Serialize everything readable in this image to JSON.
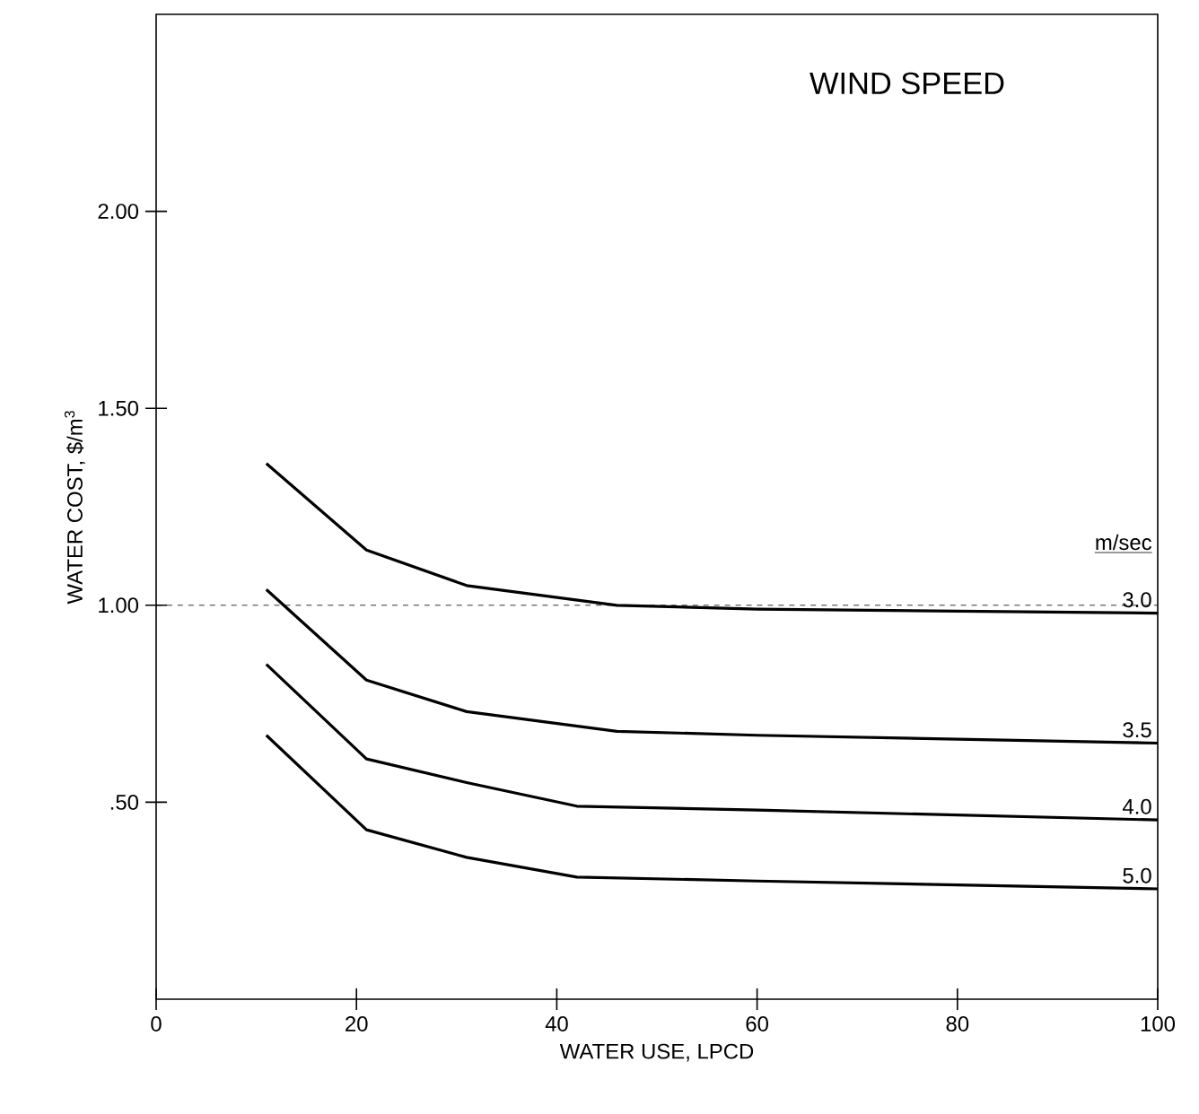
{
  "chart_data": {
    "type": "line",
    "title": "WIND SPEED",
    "xlabel": "WATER USE, LPCD",
    "ylabel": "WATER COST, $/m$^{3}$",
    "legend_title": "m/sec",
    "xlim": [
      0,
      100
    ],
    "ylim": [
      0,
      2.5
    ],
    "xticks": [
      0,
      20,
      40,
      60,
      80,
      100
    ],
    "yticks": [
      {
        "value": 0.5,
        "label": ".50"
      },
      {
        "value": 1.0,
        "label": "1.00"
      },
      {
        "value": 1.5,
        "label": "1.50"
      },
      {
        "value": 2.0,
        "label": "2.00"
      }
    ],
    "series": [
      {
        "name": "3.0",
        "color": "#000000",
        "x": [
          11,
          21,
          31,
          46,
          60,
          100
        ],
        "values": [
          1.36,
          1.14,
          1.05,
          1.0,
          0.99,
          0.98
        ]
      },
      {
        "name": "3.5",
        "color": "#000000",
        "x": [
          11,
          21,
          31,
          46,
          60,
          100
        ],
        "values": [
          1.04,
          0.81,
          0.73,
          0.68,
          0.67,
          0.65
        ]
      },
      {
        "name": "4.0",
        "color": "#000000",
        "x": [
          11,
          21,
          31,
          42,
          60,
          100
        ],
        "values": [
          0.85,
          0.61,
          0.55,
          0.49,
          0.48,
          0.455
        ]
      },
      {
        "name": "5.0",
        "color": "#000000",
        "x": [
          11,
          21,
          31,
          42,
          60,
          100
        ],
        "values": [
          0.67,
          0.43,
          0.36,
          0.31,
          0.3,
          0.28
        ]
      }
    ],
    "ref_lines": [
      {
        "axis": "y",
        "value": 1.0,
        "line_style": "dashed"
      }
    ],
    "grid": false,
    "legend": "right",
    "marker": "none",
    "line_style": "solid"
  }
}
